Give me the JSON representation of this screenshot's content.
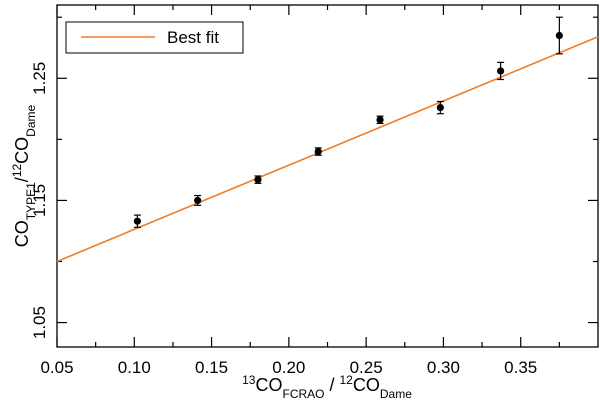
{
  "chart_data": {
    "type": "scatter",
    "title": "",
    "xlabel": {
      "parts": [
        {
          "text": "13",
          "style": "sup"
        },
        {
          "text": "CO",
          "style": "normal"
        },
        {
          "text": "FCRAO",
          "style": "sub"
        },
        {
          "text": " / ",
          "style": "normal"
        },
        {
          "text": "12",
          "style": "sup"
        },
        {
          "text": "CO",
          "style": "normal"
        },
        {
          "text": "Dame",
          "style": "sub"
        }
      ]
    },
    "ylabel": {
      "parts": [
        {
          "text": "CO",
          "style": "normal"
        },
        {
          "text": "TYPE1",
          "style": "sub"
        },
        {
          "text": "/",
          "style": "normal"
        },
        {
          "text": "12",
          "style": "sup"
        },
        {
          "text": "CO",
          "style": "normal"
        },
        {
          "text": "Dame",
          "style": "sub"
        }
      ]
    },
    "xlim": [
      0.05,
      0.4
    ],
    "ylim": [
      1.03,
      1.31
    ],
    "xticks": [
      0.05,
      0.1,
      0.15,
      0.2,
      0.25,
      0.3,
      0.35
    ],
    "xtick_labels": [
      "0.05",
      "0.10",
      "0.15",
      "0.20",
      "0.25",
      "0.30",
      "0.35"
    ],
    "xminor": [
      0.075,
      0.125,
      0.175,
      0.225,
      0.275,
      0.325,
      0.375
    ],
    "yticks": [
      1.05,
      1.15,
      1.25
    ],
    "ytick_labels": [
      "1.05",
      "1.15",
      "1.25"
    ],
    "yminor": [
      1.1,
      1.2,
      1.3
    ],
    "grid": false,
    "legend_position": "top-left",
    "fit_color": "#f07d28",
    "marker_color": "#000000",
    "series": [
      {
        "type": "scatter",
        "x": [
          0.102,
          0.141,
          0.18,
          0.219,
          0.259,
          0.298,
          0.337,
          0.375
        ],
        "y": [
          1.133,
          1.15,
          1.167,
          1.19,
          1.216,
          1.226,
          1.256,
          1.285
        ],
        "yerr": [
          0.005,
          0.004,
          0.003,
          0.003,
          0.003,
          0.005,
          0.007,
          0.015
        ]
      },
      {
        "name": "Best fit",
        "type": "line",
        "x": [
          0.05,
          0.4
        ],
        "y": [
          1.1,
          1.284
        ]
      }
    ]
  }
}
